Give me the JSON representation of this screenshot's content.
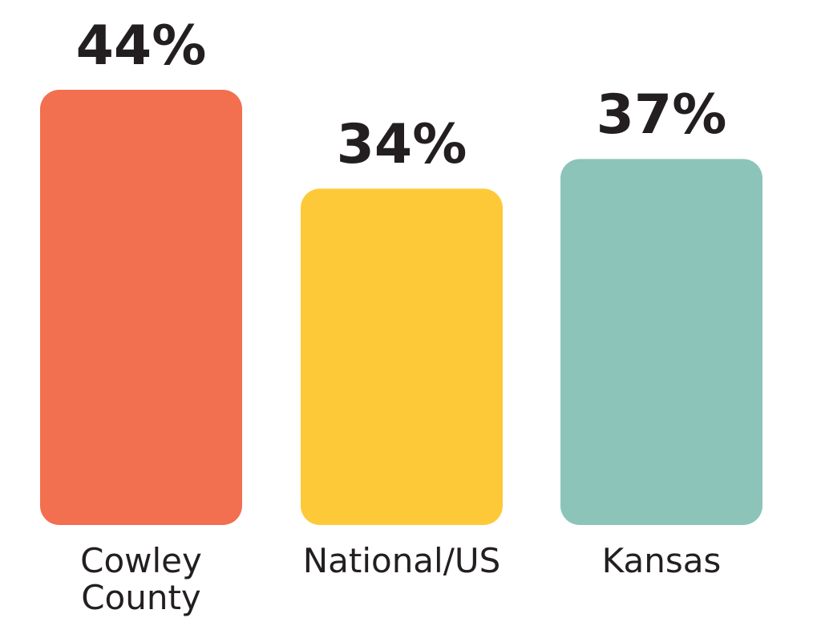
{
  "chart_data": {
    "type": "bar",
    "categories": [
      "Cowley County",
      "National/US",
      "Kansas"
    ],
    "values": [
      44,
      34,
      37
    ],
    "value_labels": [
      "44%",
      "34%",
      "37%"
    ],
    "colors": [
      "#f26f50",
      "#fec938",
      "#8cc4b9"
    ]
  }
}
